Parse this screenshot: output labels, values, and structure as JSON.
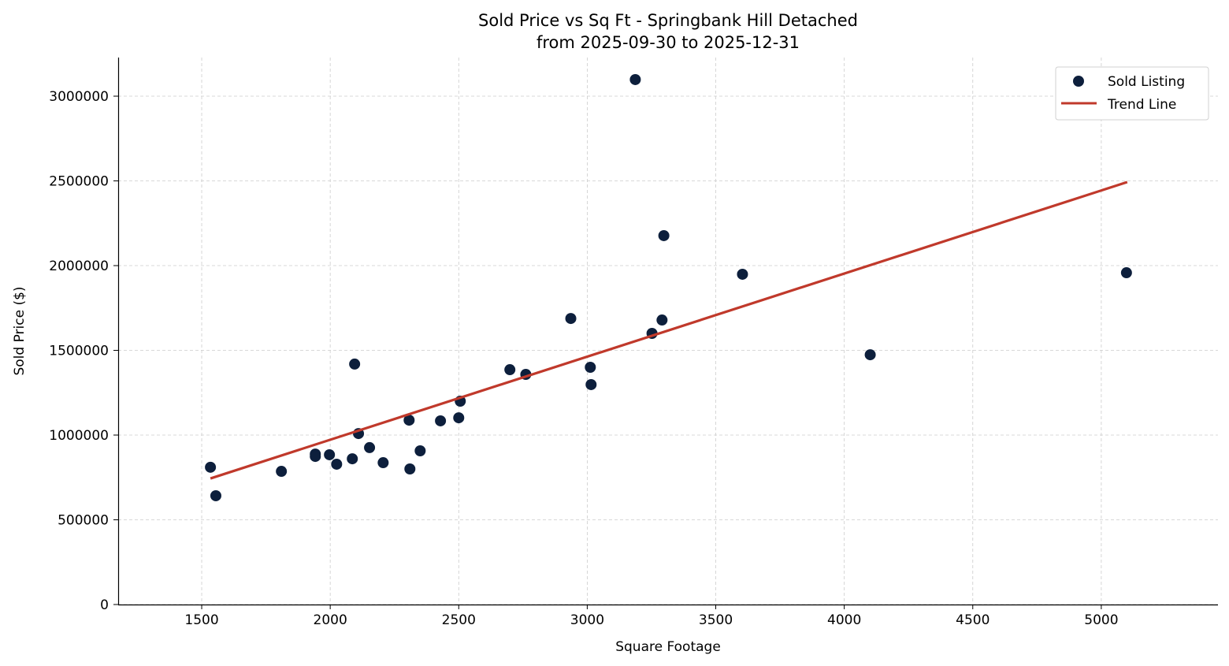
{
  "chart_data": {
    "type": "scatter",
    "title": "Sold Price vs Sq Ft - Springbank Hill Detached",
    "subtitle": "from 2025-09-30 to 2025-12-31",
    "xlabel": "Square Footage",
    "ylabel": "Sold Price ($)",
    "xlim": [
      1175,
      5454
    ],
    "ylim": [
      0,
      3228000
    ],
    "xticks": [
      1500,
      2000,
      2500,
      3000,
      3500,
      4000,
      4500,
      5000
    ],
    "yticks": [
      0,
      500000,
      1000000,
      1500000,
      2000000,
      2500000,
      3000000
    ],
    "grid": true,
    "legend_position": "top-right",
    "colors": {
      "points": "#0d1f3c",
      "trend": "#c0392b"
    },
    "series": [
      {
        "name": "Sold Listing",
        "type": "scatter",
        "points": [
          [
            1534,
            810000
          ],
          [
            1555,
            642000
          ],
          [
            1810,
            786000
          ],
          [
            1942,
            888000
          ],
          [
            1942,
            874000
          ],
          [
            1997,
            884000
          ],
          [
            2025,
            828000
          ],
          [
            2086,
            860000
          ],
          [
            2095,
            1419000
          ],
          [
            2110,
            1009000
          ],
          [
            2153,
            926000
          ],
          [
            2206,
            837000
          ],
          [
            2307,
            1088000
          ],
          [
            2310,
            800000
          ],
          [
            2350,
            907000
          ],
          [
            2429,
            1084000
          ],
          [
            2500,
            1102000
          ],
          [
            2506,
            1200000
          ],
          [
            2699,
            1386000
          ],
          [
            2761,
            1358000
          ],
          [
            2936,
            1688000
          ],
          [
            3012,
            1400000
          ],
          [
            3015,
            1298000
          ],
          [
            3187,
            3098000
          ],
          [
            3252,
            1600000
          ],
          [
            3291,
            1679000
          ],
          [
            3298,
            2177000
          ],
          [
            3604,
            1949000
          ],
          [
            4101,
            1474000
          ],
          [
            5098,
            1958000
          ]
        ]
      },
      {
        "name": "Trend Line",
        "type": "line",
        "points": [
          [
            1534,
            744000
          ],
          [
            5101,
            2493000
          ]
        ]
      }
    ]
  }
}
